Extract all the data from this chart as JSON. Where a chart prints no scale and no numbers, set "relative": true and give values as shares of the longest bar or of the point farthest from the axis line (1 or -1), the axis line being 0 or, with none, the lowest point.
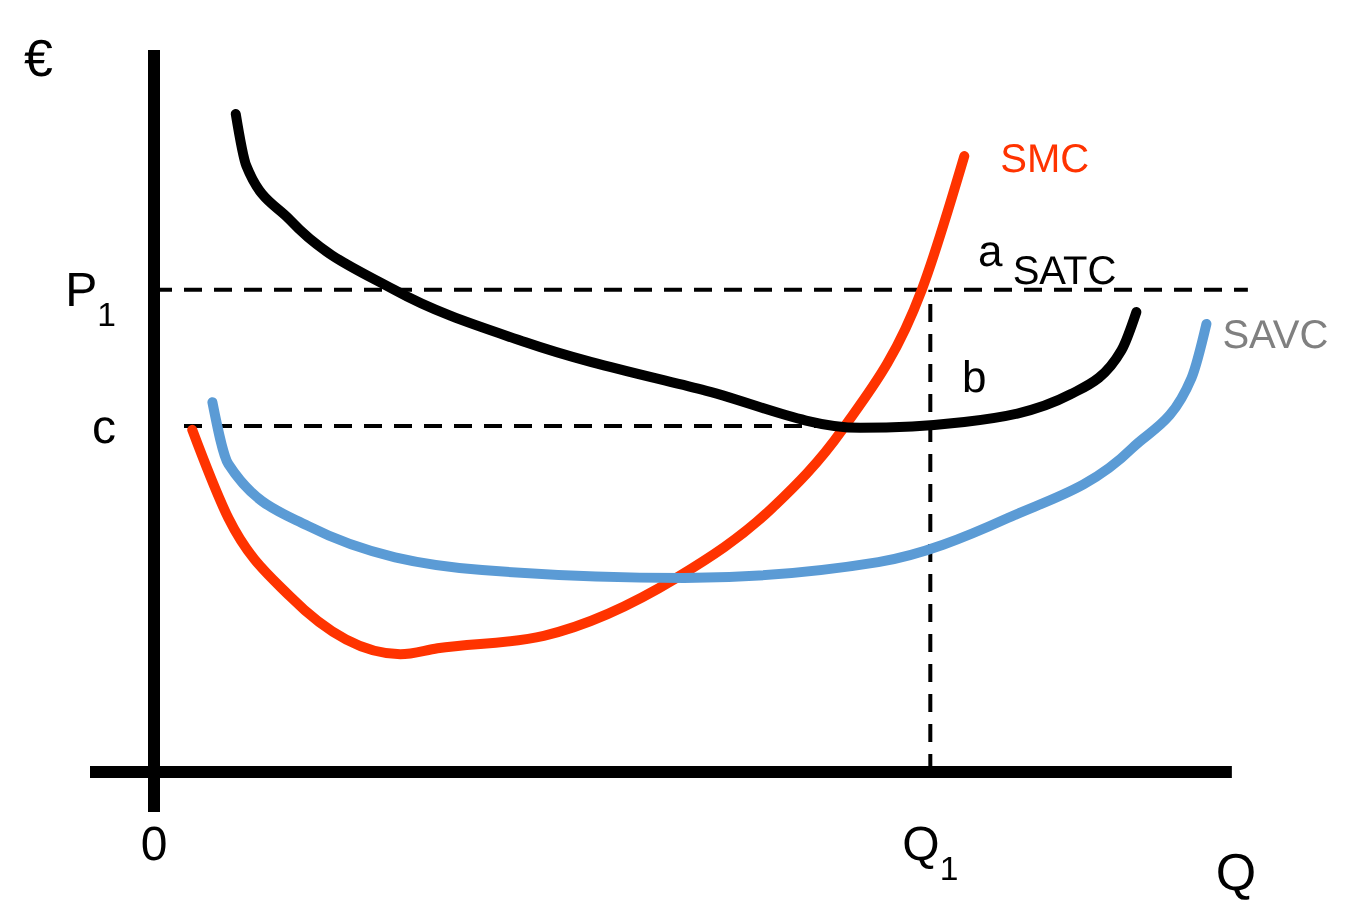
{
  "chart_data": {
    "type": "line",
    "relative": true,
    "xlabel": "Q",
    "ylabel": "€",
    "xlim": [
      0,
      1.03
    ],
    "xticks": [
      {
        "value": 0,
        "label": "0"
      },
      {
        "value": 0.731,
        "label": "Q$_{1}$"
      }
    ],
    "series": [
      {
        "name": "SMC",
        "color": "#ff3300",
        "x": [
          0.036,
          0.07,
          0.128,
          0.232,
          0.267,
          0.367,
          0.492,
          0.582,
          0.648,
          0.723,
          0.763
        ],
        "values": [
          0.52,
          0.386,
          0.267,
          0.179,
          0.188,
          0.207,
          0.295,
          0.401,
          0.52,
          0.733,
          0.936
        ]
      },
      {
        "name": "SATC",
        "color": "#000000",
        "x": [
          0.077,
          0.087,
          0.128,
          0.226,
          0.35,
          0.516,
          0.665,
          0.763,
          0.863,
          0.911,
          0.925
        ],
        "values": [
          1.0,
          0.921,
          0.839,
          0.733,
          0.653,
          0.581,
          0.523,
          0.532,
          0.574,
          0.641,
          0.699
        ]
      },
      {
        "name": "SAVC",
        "color": "#5b9bd5",
        "x": [
          0.055,
          0.07,
          0.145,
          0.309,
          0.499,
          0.682,
          0.804,
          0.921,
          0.977,
          0.991
        ],
        "values": [
          0.562,
          0.468,
          0.374,
          0.307,
          0.295,
          0.319,
          0.386,
          0.492,
          0.599,
          0.681
        ]
      }
    ],
    "ref_lines": [
      {
        "axis": "y",
        "value": 0.733,
        "label": "P$_{1}$",
        "line_style": "dashed"
      },
      {
        "axis": "y",
        "value": 0.526,
        "label": "c",
        "line_style": "dashed"
      },
      {
        "axis": "x",
        "value": 0.731,
        "line_style": "dashed"
      }
    ],
    "annotations": [
      "a",
      "b"
    ],
    "line_style": "solid",
    "marker": "none",
    "legend": false
  }
}
